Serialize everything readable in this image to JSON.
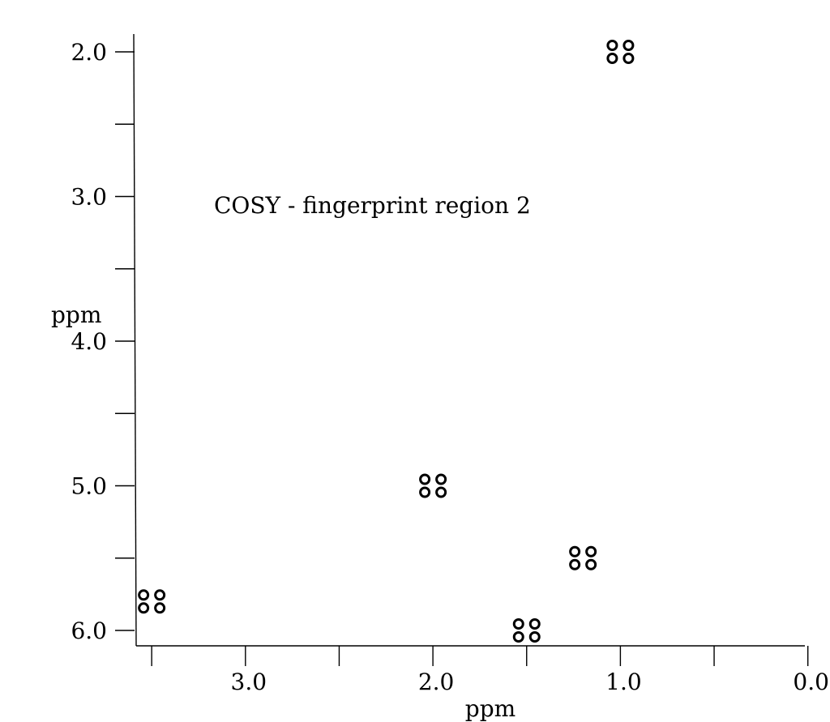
{
  "chart_data": {
    "type": "scatter",
    "title": "COSY  - fingerprint region 2",
    "xlabel": "ppm",
    "ylabel": "ppm",
    "xlim": [
      3.5,
      0.0
    ],
    "ylim": [
      2.0,
      6.0
    ],
    "x_ticks": [
      "3.0",
      "2.0",
      "1.0",
      "0.0"
    ],
    "y_ticks": [
      "2.0",
      "3.0",
      "4.0",
      "5.0",
      "6.0"
    ],
    "grid": false,
    "legend": "none",
    "peaks": [
      {
        "x": 1.0,
        "y": 2.0
      },
      {
        "x": 2.0,
        "y": 5.0
      },
      {
        "x": 1.2,
        "y": 5.5
      },
      {
        "x": 1.5,
        "y": 6.0
      },
      {
        "x": 3.5,
        "y": 5.8
      }
    ]
  },
  "colors": {
    "axis": "#000000",
    "marker": "#000000"
  }
}
